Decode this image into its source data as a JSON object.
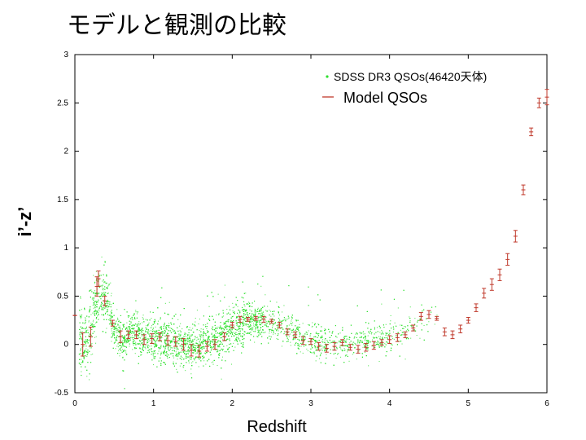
{
  "slide": {
    "title": "モデルと観測の比較"
  },
  "chart_data": {
    "type": "scatter",
    "xlabel": "Redshift",
    "ylabel": "i’-z’",
    "xlim": [
      0,
      6
    ],
    "ylim": [
      -0.5,
      3
    ],
    "x_ticks": [
      "0",
      "1",
      "2",
      "3",
      "4",
      "5",
      "6"
    ],
    "y_ticks": [
      "-0.5",
      "0",
      "0.5",
      "1",
      "1.5",
      "2",
      "2.5",
      "3"
    ],
    "grid": false,
    "legend_position": "top-right",
    "colors": {
      "observed": "#2ee02e",
      "model": "#c0392b"
    },
    "series": [
      {
        "name": "SDSS DR3 QSOs(46420天体)",
        "kind": "points",
        "approx_count": 46420,
        "trend": [
          {
            "z": 0.1,
            "color": 0.05
          },
          {
            "z": 0.2,
            "color": 0.12
          },
          {
            "z": 0.3,
            "color": 0.55
          },
          {
            "z": 0.4,
            "color": 0.45
          },
          {
            "z": 0.5,
            "color": 0.15
          },
          {
            "z": 0.6,
            "color": 0.05
          },
          {
            "z": 0.7,
            "color": 0.15
          },
          {
            "z": 0.8,
            "color": 0.12
          },
          {
            "z": 1.0,
            "color": 0.06
          },
          {
            "z": 1.2,
            "color": 0.03
          },
          {
            "z": 1.4,
            "color": 0.0
          },
          {
            "z": 1.6,
            "color": -0.02
          },
          {
            "z": 1.8,
            "color": 0.05
          },
          {
            "z": 2.0,
            "color": 0.18
          },
          {
            "z": 2.2,
            "color": 0.25
          },
          {
            "z": 2.4,
            "color": 0.25
          },
          {
            "z": 2.6,
            "color": 0.18
          },
          {
            "z": 2.8,
            "color": 0.1
          },
          {
            "z": 3.0,
            "color": 0.05
          },
          {
            "z": 3.2,
            "color": 0.02
          },
          {
            "z": 3.4,
            "color": 0.0
          },
          {
            "z": 3.6,
            "color": 0.0
          },
          {
            "z": 3.8,
            "color": 0.04
          },
          {
            "z": 4.0,
            "color": 0.08
          },
          {
            "z": 4.2,
            "color": 0.15
          },
          {
            "z": 4.4,
            "color": 0.25
          },
          {
            "z": 4.6,
            "color": 0.3
          }
        ]
      },
      {
        "name": "Model QSOs",
        "kind": "errorbars",
        "points": [
          {
            "x": 0.0,
            "y": 0.3,
            "err": 0.0
          },
          {
            "x": 0.1,
            "y": 0.0,
            "err": 0.12
          },
          {
            "x": 0.2,
            "y": 0.08,
            "err": 0.1
          },
          {
            "x": 0.28,
            "y": 0.6,
            "err": 0.1
          },
          {
            "x": 0.3,
            "y": 0.68,
            "err": 0.08
          },
          {
            "x": 0.38,
            "y": 0.45,
            "err": 0.05
          },
          {
            "x": 0.48,
            "y": 0.22,
            "err": 0.03
          },
          {
            "x": 0.58,
            "y": 0.08,
            "err": 0.06
          },
          {
            "x": 0.68,
            "y": 0.1,
            "err": 0.04
          },
          {
            "x": 0.78,
            "y": 0.1,
            "err": 0.04
          },
          {
            "x": 0.88,
            "y": 0.05,
            "err": 0.05
          },
          {
            "x": 0.98,
            "y": 0.06,
            "err": 0.05
          },
          {
            "x": 1.08,
            "y": 0.08,
            "err": 0.04
          },
          {
            "x": 1.18,
            "y": 0.04,
            "err": 0.05
          },
          {
            "x": 1.28,
            "y": 0.03,
            "err": 0.05
          },
          {
            "x": 1.38,
            "y": 0.0,
            "err": 0.06
          },
          {
            "x": 1.48,
            "y": -0.06,
            "err": 0.06
          },
          {
            "x": 1.58,
            "y": -0.07,
            "err": 0.06
          },
          {
            "x": 1.68,
            "y": -0.02,
            "err": 0.05
          },
          {
            "x": 1.78,
            "y": 0.0,
            "err": 0.05
          },
          {
            "x": 1.9,
            "y": 0.08,
            "err": 0.04
          },
          {
            "x": 2.0,
            "y": 0.2,
            "err": 0.03
          },
          {
            "x": 2.1,
            "y": 0.26,
            "err": 0.03
          },
          {
            "x": 2.2,
            "y": 0.26,
            "err": 0.02
          },
          {
            "x": 2.3,
            "y": 0.27,
            "err": 0.02
          },
          {
            "x": 2.4,
            "y": 0.26,
            "err": 0.03
          },
          {
            "x": 2.5,
            "y": 0.24,
            "err": 0.02
          },
          {
            "x": 2.6,
            "y": 0.2,
            "err": 0.03
          },
          {
            "x": 2.7,
            "y": 0.13,
            "err": 0.03
          },
          {
            "x": 2.8,
            "y": 0.1,
            "err": 0.03
          },
          {
            "x": 2.9,
            "y": 0.04,
            "err": 0.04
          },
          {
            "x": 3.0,
            "y": 0.03,
            "err": 0.03
          },
          {
            "x": 3.1,
            "y": -0.02,
            "err": 0.04
          },
          {
            "x": 3.2,
            "y": -0.04,
            "err": 0.04
          },
          {
            "x": 3.3,
            "y": -0.02,
            "err": 0.04
          },
          {
            "x": 3.4,
            "y": 0.02,
            "err": 0.03
          },
          {
            "x": 3.5,
            "y": -0.03,
            "err": 0.03
          },
          {
            "x": 3.6,
            "y": -0.05,
            "err": 0.04
          },
          {
            "x": 3.7,
            "y": -0.03,
            "err": 0.04
          },
          {
            "x": 3.8,
            "y": -0.01,
            "err": 0.04
          },
          {
            "x": 3.9,
            "y": 0.02,
            "err": 0.03
          },
          {
            "x": 4.0,
            "y": 0.05,
            "err": 0.04
          },
          {
            "x": 4.1,
            "y": 0.07,
            "err": 0.04
          },
          {
            "x": 4.2,
            "y": 0.1,
            "err": 0.03
          },
          {
            "x": 4.3,
            "y": 0.17,
            "err": 0.03
          },
          {
            "x": 4.4,
            "y": 0.29,
            "err": 0.04
          },
          {
            "x": 4.5,
            "y": 0.31,
            "err": 0.04
          },
          {
            "x": 4.6,
            "y": 0.27,
            "err": 0.02
          },
          {
            "x": 4.7,
            "y": 0.13,
            "err": 0.04
          },
          {
            "x": 4.8,
            "y": 0.1,
            "err": 0.04
          },
          {
            "x": 4.9,
            "y": 0.16,
            "err": 0.04
          },
          {
            "x": 5.0,
            "y": 0.25,
            "err": 0.03
          },
          {
            "x": 5.1,
            "y": 0.38,
            "err": 0.04
          },
          {
            "x": 5.2,
            "y": 0.53,
            "err": 0.05
          },
          {
            "x": 5.3,
            "y": 0.62,
            "err": 0.06
          },
          {
            "x": 5.4,
            "y": 0.72,
            "err": 0.06
          },
          {
            "x": 5.5,
            "y": 0.88,
            "err": 0.06
          },
          {
            "x": 5.6,
            "y": 1.12,
            "err": 0.06
          },
          {
            "x": 5.7,
            "y": 1.6,
            "err": 0.05
          },
          {
            "x": 5.8,
            "y": 2.2,
            "err": 0.04
          },
          {
            "x": 5.9,
            "y": 2.5,
            "err": 0.05
          },
          {
            "x": 6.0,
            "y": 2.56,
            "err": 0.08
          }
        ]
      }
    ]
  }
}
